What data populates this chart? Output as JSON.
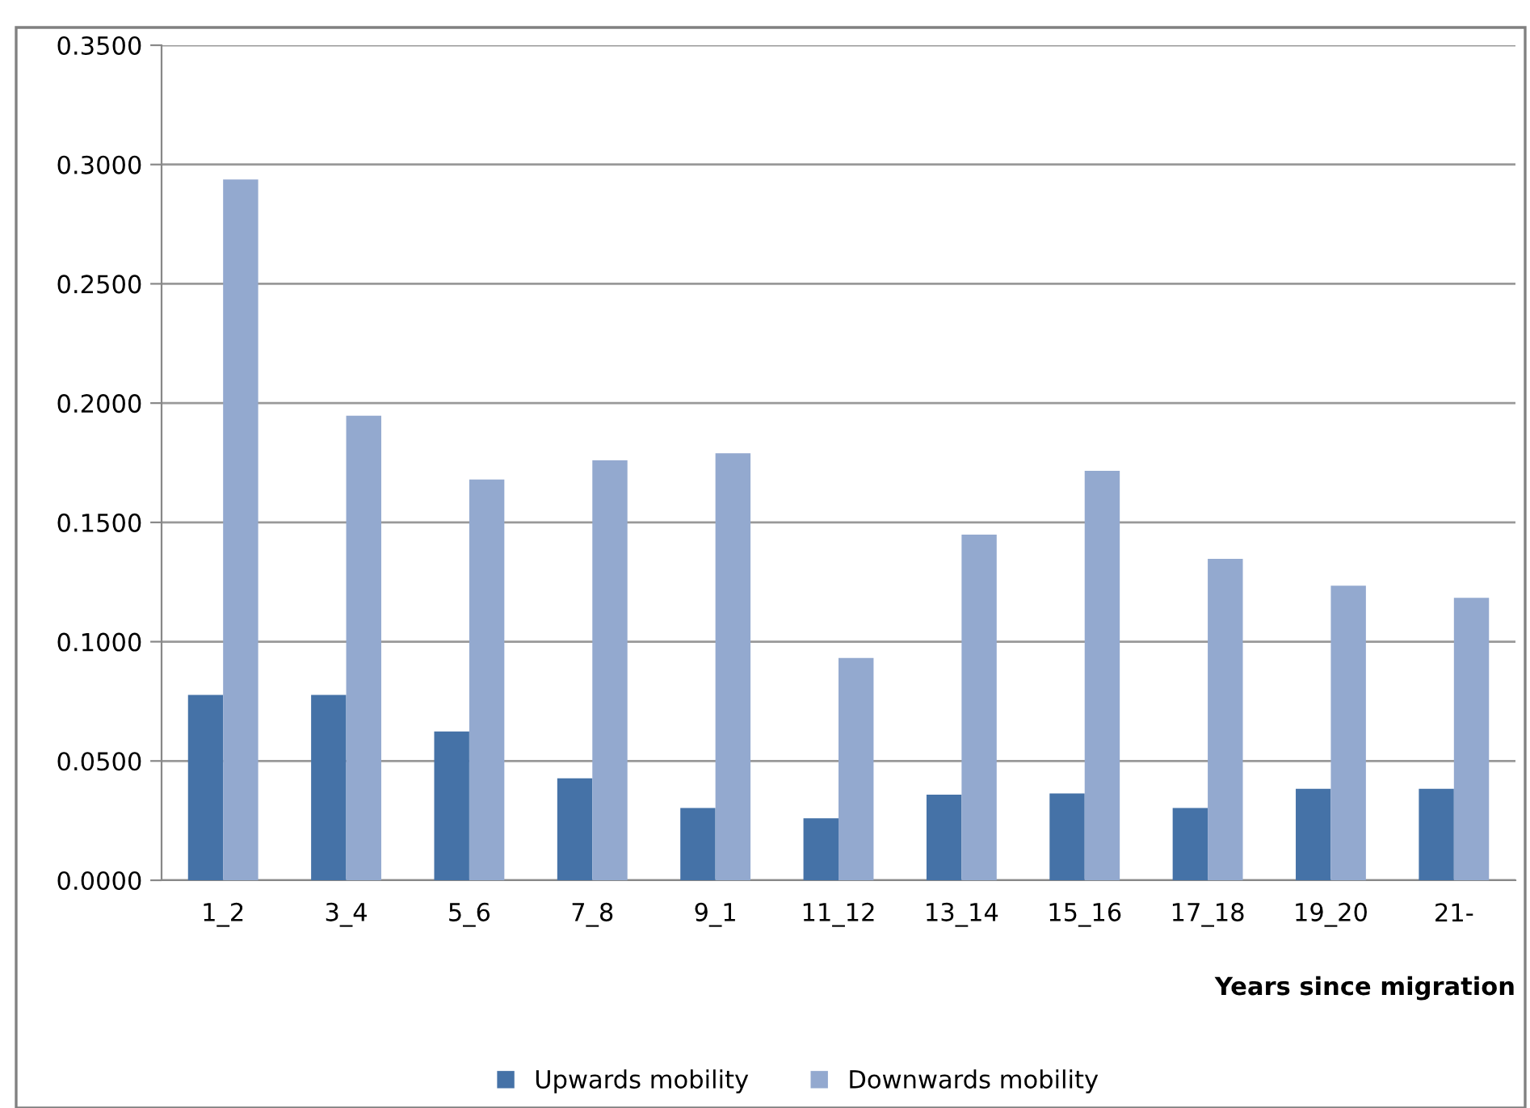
{
  "chart_data": {
    "type": "bar",
    "xlabel": "Years since migration",
    "categories": [
      "1_2",
      "3_4",
      "5_6",
      "7_8",
      "9_1",
      "11_12",
      "13_14",
      "15_16",
      "17_18",
      "19_20",
      "21-"
    ],
    "series": [
      {
        "name": "Upwards mobility",
        "color": "#4572a7",
        "values": [
          0.0777,
          0.0777,
          0.0624,
          0.0427,
          0.0303,
          0.026,
          0.0359,
          0.0364,
          0.0303,
          0.0383,
          0.0383
        ]
      },
      {
        "name": "Downwards mobility",
        "color": "#93a9cf",
        "values": [
          0.2937,
          0.1947,
          0.168,
          0.176,
          0.179,
          0.0932,
          0.1449,
          0.1716,
          0.1347,
          0.1235,
          0.1184
        ]
      }
    ],
    "ylim": [
      0,
      0.35
    ],
    "yticks": [
      {
        "value": 0,
        "label": "0.0000"
      },
      {
        "value": 0.05,
        "label": "0.0500"
      },
      {
        "value": 0.1,
        "label": "0.1000"
      },
      {
        "value": 0.15,
        "label": "0.1500"
      },
      {
        "value": 0.2,
        "label": "0.2000"
      },
      {
        "value": 0.25,
        "label": "0.2500"
      },
      {
        "value": 0.3,
        "label": "0.3000"
      },
      {
        "value": 0.35,
        "label": "0.3500"
      }
    ],
    "grid": "y",
    "legend": "bottom"
  }
}
